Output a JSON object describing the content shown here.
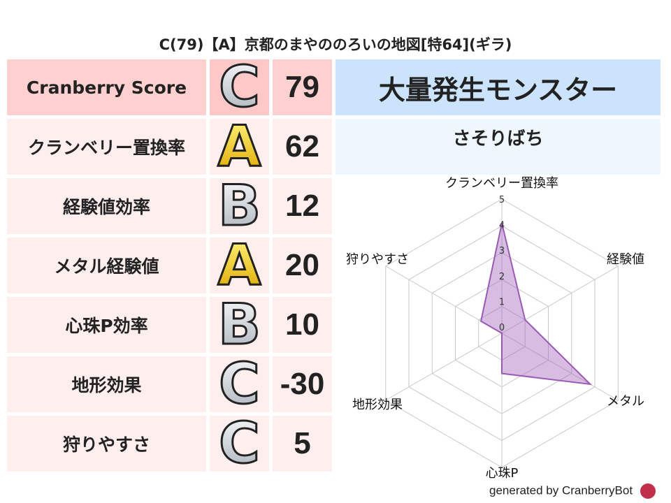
{
  "title": "C(79)【A】京都のまやののろいの地図[特64](ギラ)",
  "rows": [
    {
      "label": "Cranberry Score",
      "grade": "C",
      "value": "79",
      "bg": "#ffd0d0",
      "bg2": "#ffc8c8"
    },
    {
      "label": "クランベリー置換率",
      "grade": "A",
      "value": "62",
      "bg": "#ffeeee",
      "bg2": "#ffeeee"
    },
    {
      "label": "経験値効率",
      "grade": "B",
      "value": "12",
      "bg": "#ffeeee",
      "bg2": "#ffeeee"
    },
    {
      "label": "メタル経験値",
      "grade": "A",
      "value": "20",
      "bg": "#ffeeee",
      "bg2": "#ffeeee"
    },
    {
      "label": "心珠P効率",
      "grade": "B",
      "value": "10",
      "bg": "#ffeeee",
      "bg2": "#ffeeee"
    },
    {
      "label": "地形効果",
      "grade": "C",
      "value": "-30",
      "bg": "#ffeeee",
      "bg2": "#ffeeee"
    },
    {
      "label": "狩りやすさ",
      "grade": "C",
      "value": "5",
      "bg": "#ffeeee",
      "bg2": "#ffeeee"
    }
  ],
  "header": "大量発生モンスター",
  "monster": "さそりばち",
  "footer": "generated by CranberryBot",
  "chart_data": {
    "type": "radar",
    "axes": [
      "クランベリー置換率",
      "経験値",
      "メタル",
      "心珠P",
      "地形効果",
      "狩りやすさ"
    ],
    "values": [
      4.1,
      1.0,
      3.8,
      1.5,
      0,
      0.9
    ],
    "rlim": [
      0,
      5
    ],
    "ticks": [
      "0",
      "1",
      "2",
      "3",
      "4",
      "5"
    ],
    "color": "#9b59b6"
  }
}
